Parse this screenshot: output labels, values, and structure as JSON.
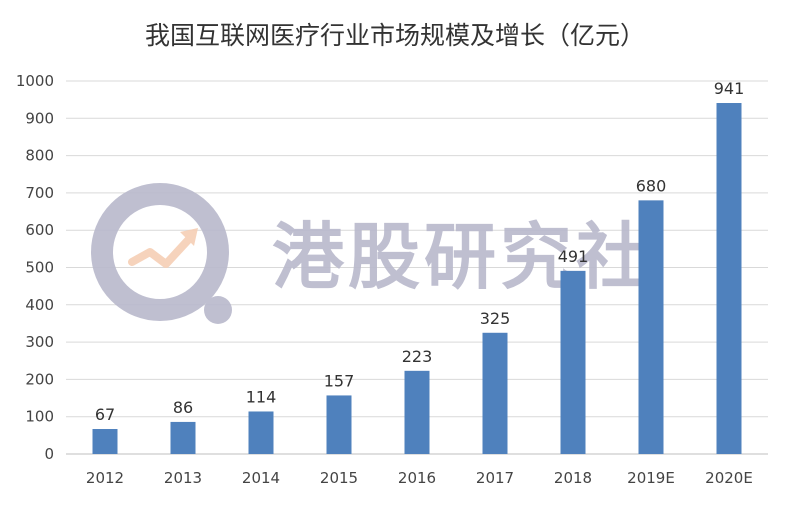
{
  "chart_data": {
    "type": "bar",
    "title": "我国互联网医疗行业市场规模及增长（亿元）",
    "categories": [
      "2012",
      "2013",
      "2014",
      "2015",
      "2016",
      "2017",
      "2018",
      "2019E",
      "2020E"
    ],
    "values": [
      67,
      86,
      114,
      157,
      223,
      325,
      491,
      680,
      941
    ],
    "yticks": [
      0,
      100,
      200,
      300,
      400,
      500,
      600,
      700,
      800,
      900,
      1000
    ],
    "ylim": [
      0,
      1000
    ],
    "xlabel": "",
    "ylabel": "",
    "grid": true,
    "legend": "none",
    "bar_color": "#4f81bd"
  },
  "watermark": {
    "text": "港股研究社",
    "color": "#b9b9cc"
  }
}
